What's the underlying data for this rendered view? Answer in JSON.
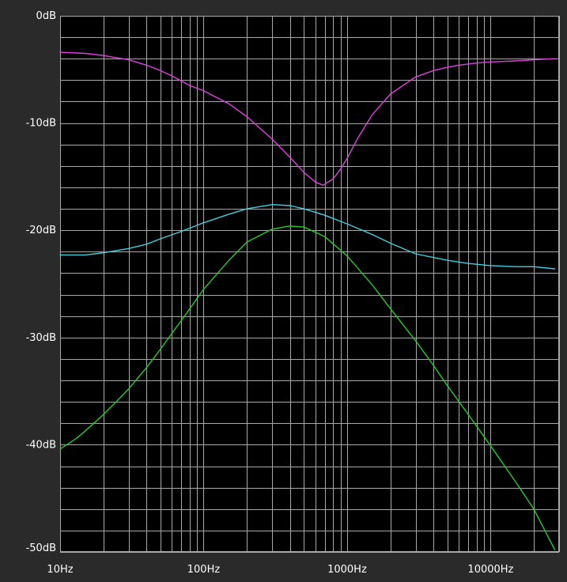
{
  "chart_data": {
    "type": "line",
    "title": "",
    "xlabel": "",
    "ylabel": "",
    "x_scale": "log",
    "xlim": [
      10,
      30000
    ],
    "ylim": [
      -50,
      0
    ],
    "grid": true,
    "colors": {
      "background": "#2a2a2a",
      "plot_background": "#000000",
      "grid": "#a8a8a8",
      "text": "#ffffff"
    },
    "x_ticks": [
      {
        "value": 10,
        "label": "10Hz"
      },
      {
        "value": 100,
        "label": "100Hz"
      },
      {
        "value": 1000,
        "label": "1000Hz"
      },
      {
        "value": 10000,
        "label": "10000Hz"
      }
    ],
    "y_ticks": [
      {
        "value": 0,
        "label": "0dB"
      },
      {
        "value": -10,
        "label": "-10dB"
      },
      {
        "value": -20,
        "label": "-20dB"
      },
      {
        "value": -30,
        "label": "-30dB"
      },
      {
        "value": -40,
        "label": "-40dB"
      },
      {
        "value": -50,
        "label": "-50dB"
      }
    ],
    "series": [
      {
        "color": "#e040e0",
        "points": [
          [
            10,
            -3.4
          ],
          [
            15,
            -3.5
          ],
          [
            20,
            -3.7
          ],
          [
            30,
            -4.1
          ],
          [
            40,
            -4.6
          ],
          [
            50,
            -5.1
          ],
          [
            60,
            -5.6
          ],
          [
            80,
            -6.5
          ],
          [
            100,
            -7.0
          ],
          [
            150,
            -8.2
          ],
          [
            200,
            -9.4
          ],
          [
            300,
            -11.5
          ],
          [
            400,
            -13.2
          ],
          [
            500,
            -14.6
          ],
          [
            600,
            -15.5
          ],
          [
            680,
            -15.8
          ],
          [
            800,
            -15.2
          ],
          [
            900,
            -14.3
          ],
          [
            1000,
            -13.3
          ],
          [
            1200,
            -11.3
          ],
          [
            1500,
            -9.2
          ],
          [
            2000,
            -7.3
          ],
          [
            3000,
            -5.7
          ],
          [
            4000,
            -5.1
          ],
          [
            5000,
            -4.8
          ],
          [
            6000,
            -4.6
          ],
          [
            8000,
            -4.4
          ],
          [
            10000,
            -4.3
          ],
          [
            15000,
            -4.2
          ],
          [
            20000,
            -4.1
          ],
          [
            28000,
            -4.0
          ]
        ]
      },
      {
        "color": "#40d0e0",
        "points": [
          [
            10,
            -22.3
          ],
          [
            15,
            -22.3
          ],
          [
            20,
            -22.1
          ],
          [
            30,
            -21.7
          ],
          [
            40,
            -21.3
          ],
          [
            50,
            -20.8
          ],
          [
            70,
            -20.1
          ],
          [
            100,
            -19.3
          ],
          [
            150,
            -18.5
          ],
          [
            200,
            -18.0
          ],
          [
            300,
            -17.6
          ],
          [
            400,
            -17.7
          ],
          [
            500,
            -18.0
          ],
          [
            700,
            -18.6
          ],
          [
            1000,
            -19.4
          ],
          [
            1500,
            -20.4
          ],
          [
            2000,
            -21.2
          ],
          [
            3000,
            -22.2
          ],
          [
            5000,
            -22.8
          ],
          [
            7000,
            -23.1
          ],
          [
            10000,
            -23.3
          ],
          [
            15000,
            -23.4
          ],
          [
            20000,
            -23.4
          ],
          [
            28000,
            -23.6
          ]
        ]
      },
      {
        "color": "#20d020",
        "points": [
          [
            10,
            -40.4
          ],
          [
            13,
            -39.4
          ],
          [
            15,
            -38.7
          ],
          [
            20,
            -37.2
          ],
          [
            25,
            -35.9
          ],
          [
            30,
            -34.8
          ],
          [
            40,
            -32.8
          ],
          [
            50,
            -31.1
          ],
          [
            70,
            -28.4
          ],
          [
            100,
            -25.5
          ],
          [
            150,
            -22.8
          ],
          [
            200,
            -21.1
          ],
          [
            300,
            -19.9
          ],
          [
            400,
            -19.6
          ],
          [
            500,
            -19.7
          ],
          [
            700,
            -20.6
          ],
          [
            1000,
            -22.4
          ],
          [
            1500,
            -25.1
          ],
          [
            2000,
            -27.3
          ],
          [
            3000,
            -30.3
          ],
          [
            4000,
            -32.6
          ],
          [
            5000,
            -34.5
          ],
          [
            7000,
            -37.2
          ],
          [
            10000,
            -40.1
          ],
          [
            15000,
            -43.5
          ],
          [
            20000,
            -46.0
          ],
          [
            28000,
            -49.8
          ]
        ]
      }
    ]
  }
}
